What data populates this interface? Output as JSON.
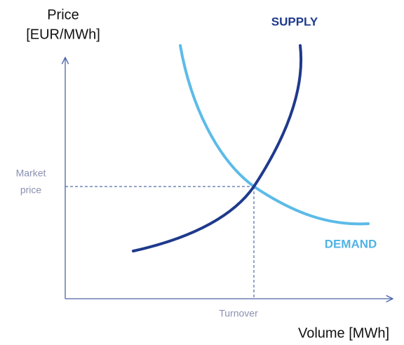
{
  "axes": {
    "y_label": [
      "Price",
      "[EUR/MWh]"
    ],
    "x_label": "Volume [MWh]"
  },
  "curves": {
    "supply": "SUPPLY",
    "demand": "DEMAND"
  },
  "equilibrium": {
    "price_label": [
      "Market",
      "price"
    ],
    "volume_label": "Turnover"
  }
}
